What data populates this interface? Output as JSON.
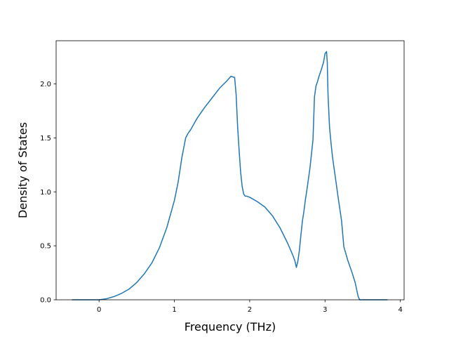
{
  "chart_data": {
    "type": "line",
    "title": "",
    "xlabel": "Frequency (THz)",
    "ylabel": "Density of States",
    "xlim": [
      -0.57,
      4.05
    ],
    "ylim": [
      0.0,
      2.4
    ],
    "xticks": [
      0,
      1,
      2,
      3,
      4
    ],
    "xtick_labels": [
      "0",
      "1",
      "2",
      "3",
      "4"
    ],
    "yticks": [
      0.0,
      0.5,
      1.0,
      1.5,
      2.0
    ],
    "ytick_labels": [
      "0.0",
      "0.5",
      "1.0",
      "1.5",
      "2.0"
    ],
    "grid": false,
    "legend": "none",
    "series": [
      {
        "color": "#1f77b4",
        "x": [
          -0.36,
          0.0,
          0.1,
          0.2,
          0.3,
          0.4,
          0.5,
          0.6,
          0.7,
          0.8,
          0.9,
          1.0,
          1.05,
          1.1,
          1.15,
          1.18,
          1.2,
          1.22,
          1.3,
          1.4,
          1.5,
          1.6,
          1.7,
          1.75,
          1.8,
          1.82,
          1.84,
          1.86,
          1.88,
          1.9,
          1.92,
          1.94,
          1.96,
          2.0,
          2.1,
          2.2,
          2.3,
          2.4,
          2.5,
          2.55,
          2.58,
          2.6,
          2.62,
          2.64,
          2.66,
          2.68,
          2.7,
          2.72,
          2.74,
          2.76,
          2.8,
          2.84,
          2.86,
          2.88,
          2.9,
          2.92,
          2.95,
          2.98,
          3.0,
          3.02,
          3.03,
          3.04,
          3.06,
          3.08,
          3.1,
          3.14,
          3.18,
          3.22,
          3.25,
          3.28,
          3.3,
          3.32,
          3.36,
          3.4,
          3.44,
          3.46,
          3.48,
          3.5,
          3.55,
          3.65,
          3.83
        ],
        "y": [
          0.0,
          0.0,
          0.01,
          0.03,
          0.06,
          0.1,
          0.16,
          0.24,
          0.34,
          0.48,
          0.67,
          0.92,
          1.09,
          1.32,
          1.5,
          1.54,
          1.56,
          1.58,
          1.68,
          1.78,
          1.87,
          1.96,
          2.03,
          2.07,
          2.06,
          1.9,
          1.6,
          1.38,
          1.18,
          1.05,
          0.98,
          0.96,
          0.96,
          0.95,
          0.91,
          0.86,
          0.78,
          0.67,
          0.53,
          0.45,
          0.4,
          0.36,
          0.3,
          0.36,
          0.46,
          0.6,
          0.73,
          0.82,
          0.93,
          1.02,
          1.22,
          1.48,
          1.88,
          1.98,
          2.02,
          2.07,
          2.13,
          2.2,
          2.28,
          2.3,
          2.2,
          1.9,
          1.6,
          1.45,
          1.32,
          1.12,
          0.92,
          0.73,
          0.49,
          0.42,
          0.37,
          0.33,
          0.25,
          0.16,
          0.03,
          0.0,
          0.0,
          0.0,
          0.0,
          0.0,
          0.0
        ]
      }
    ]
  }
}
